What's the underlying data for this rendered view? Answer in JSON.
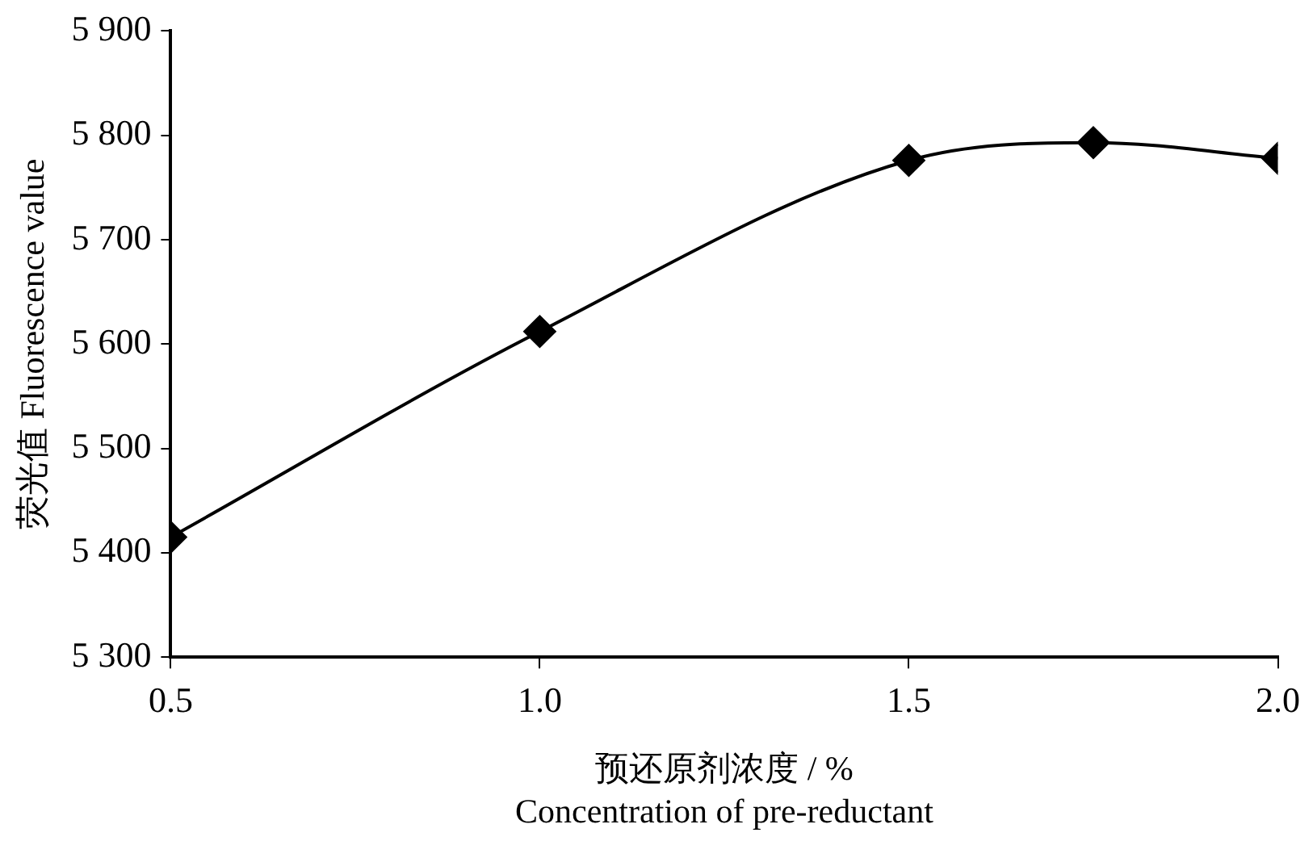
{
  "chart_data": {
    "type": "line",
    "xlabel": "预还原剂浓度 / %\nConcentration of pre-reductant",
    "ylabel": "荧光值 Fluorescence value",
    "x": [
      0.5,
      1.0,
      1.5,
      1.75,
      2.0
    ],
    "series": [
      {
        "color": "#000000",
        "values": [
          5415,
          5612,
          5776,
          5793,
          5778
        ]
      }
    ],
    "xlim": [
      0.5,
      2.0
    ],
    "xticks": [
      {
        "value": 0.5,
        "label": "0.5"
      },
      {
        "value": 1.0,
        "label": "1.0"
      },
      {
        "value": 1.5,
        "label": "1.5"
      },
      {
        "value": 2.0,
        "label": "2.0"
      }
    ],
    "ylim": [
      5300,
      5900
    ],
    "yticks": [
      {
        "value": 5300,
        "label": "5 300"
      },
      {
        "value": 5400,
        "label": "5 400"
      },
      {
        "value": 5500,
        "label": "5 500"
      },
      {
        "value": 5600,
        "label": "5 600"
      },
      {
        "value": 5700,
        "label": "5 700"
      },
      {
        "value": 5800,
        "label": "5 800"
      },
      {
        "value": 5900,
        "label": "5 900"
      }
    ],
    "grid": false,
    "legend": false,
    "marker": "diamond",
    "line_style": "solid"
  }
}
